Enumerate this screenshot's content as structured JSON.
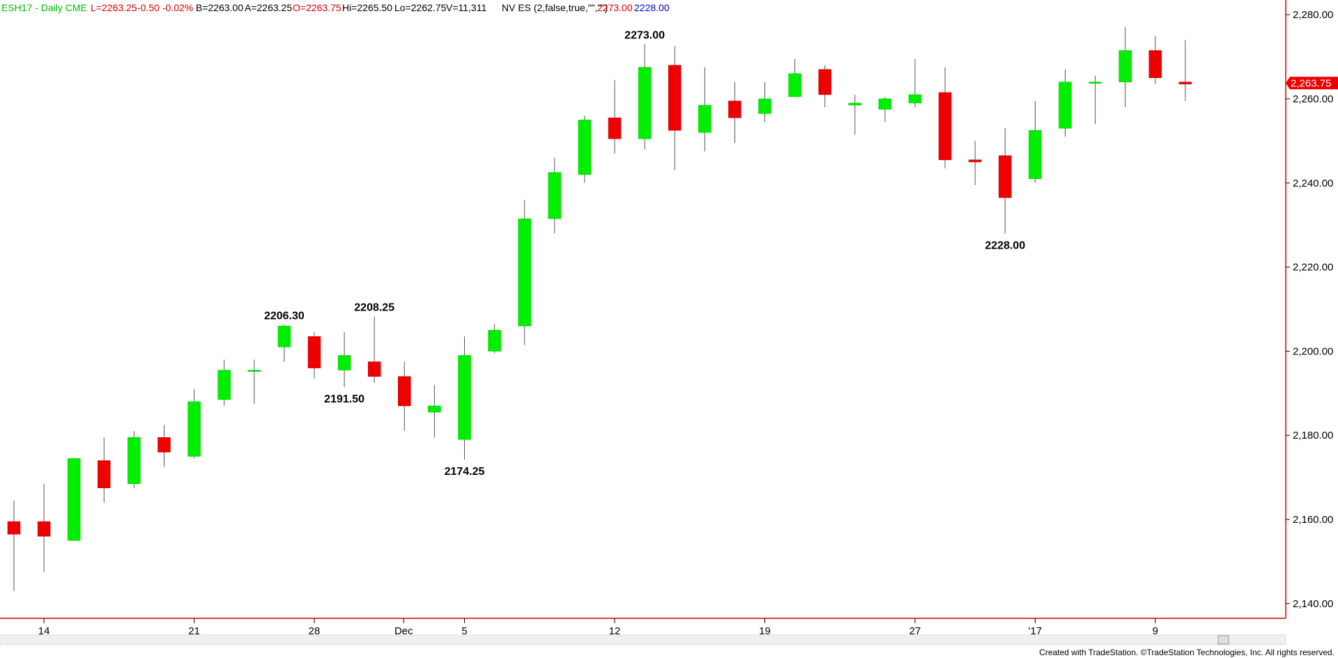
{
  "header": {
    "symbol": "ESH17 - Daily  CME",
    "last": "L=2263.25",
    "change": "-0.50",
    "change_pct": "-0.02%",
    "bid": "B=2263.00",
    "ask": "A=2263.25",
    "open": "O=2263.75",
    "high": "Hi=2265.50",
    "low": "Lo=2262.75",
    "volume": "V=11,311",
    "study": "NV ES (2,false,true,\"\",\"\")",
    "study_val1": "2273.00",
    "study_val2": "2228.00"
  },
  "colors": {
    "up": "#00ee00",
    "down": "#ee0000",
    "frame": "#cc0000",
    "wick": "#555555",
    "symbol_text": "#00bb00",
    "negative_text": "#dd0000",
    "study_val1": "#dd0000",
    "study_val2": "#0000cc"
  },
  "price_marker": "2,263.75",
  "footer": "Created with TradeStation. ©TradeStation Technologies, Inc. All rights reserved.",
  "chart_data": {
    "type": "candlestick",
    "y_axis_labels": [
      "2,280.00",
      "2,260.00",
      "2,240.00",
      "2,220.00",
      "2,200.00",
      "2,180.00",
      "2,160.00",
      "2,140.00"
    ],
    "y_axis_values": [
      2280,
      2260,
      2240,
      2220,
      2200,
      2180,
      2160,
      2140
    ],
    "ylim": [
      2136.5,
      2283.5
    ],
    "x_tick_labels": [
      {
        "label": "14",
        "bar": 1
      },
      {
        "label": "21",
        "bar": 6
      },
      {
        "label": "28",
        "bar": 10
      },
      {
        "label": "Dec",
        "bar": 13
      },
      {
        "label": "5",
        "bar": 15
      },
      {
        "label": "12",
        "bar": 20
      },
      {
        "label": "19",
        "bar": 25
      },
      {
        "label": "27",
        "bar": 30
      },
      {
        "label": "'17",
        "bar": 34
      },
      {
        "label": "9",
        "bar": 38
      }
    ],
    "candles": [
      {
        "o": 2159.5,
        "h": 2164.5,
        "l": 2143.0,
        "c": 2156.5
      },
      {
        "o": 2159.5,
        "h": 2168.5,
        "l": 2147.5,
        "c": 2156.0
      },
      {
        "o": 2155.0,
        "h": 2174.5,
        "l": 2155.0,
        "c": 2174.5
      },
      {
        "o": 2174.0,
        "h": 2179.5,
        "l": 2164.0,
        "c": 2167.5
      },
      {
        "o": 2168.5,
        "h": 2181.0,
        "l": 2167.5,
        "c": 2179.5
      },
      {
        "o": 2179.5,
        "h": 2182.5,
        "l": 2172.5,
        "c": 2176.0
      },
      {
        "o": 2175.0,
        "h": 2191.0,
        "l": 2174.5,
        "c": 2188.0
      },
      {
        "o": 2188.5,
        "h": 2198.0,
        "l": 2187.0,
        "c": 2195.5
      },
      {
        "o": 2195.5,
        "h": 2198.0,
        "l": 2187.5,
        "c": 2195.5
      },
      {
        "o": 2201.0,
        "h": 2206.3,
        "l": 2197.5,
        "c": 2206.0
      },
      {
        "o": 2203.5,
        "h": 2204.5,
        "l": 2193.5,
        "c": 2196.0
      },
      {
        "o": 2195.5,
        "h": 2204.5,
        "l": 2191.5,
        "c": 2199.0
      },
      {
        "o": 2197.5,
        "h": 2208.25,
        "l": 2192.5,
        "c": 2194.0
      },
      {
        "o": 2194.0,
        "h": 2197.5,
        "l": 2181.0,
        "c": 2187.0
      },
      {
        "o": 2185.5,
        "h": 2192.0,
        "l": 2179.5,
        "c": 2187.0
      },
      {
        "o": 2179.0,
        "h": 2203.5,
        "l": 2174.25,
        "c": 2199.0
      },
      {
        "o": 2200.0,
        "h": 2206.5,
        "l": 2199.5,
        "c": 2205.0
      },
      {
        "o": 2206.0,
        "h": 2236.0,
        "l": 2201.5,
        "c": 2231.5
      },
      {
        "o": 2231.5,
        "h": 2246.0,
        "l": 2228.0,
        "c": 2242.5
      },
      {
        "o": 2242.0,
        "h": 2256.0,
        "l": 2240.0,
        "c": 2255.0
      },
      {
        "o": 2255.5,
        "h": 2264.5,
        "l": 2247.0,
        "c": 2250.5
      },
      {
        "o": 2250.5,
        "h": 2273.0,
        "l": 2248.0,
        "c": 2267.5
      },
      {
        "o": 2268.0,
        "h": 2272.5,
        "l": 2243.0,
        "c": 2252.5
      },
      {
        "o": 2252.0,
        "h": 2267.5,
        "l": 2247.5,
        "c": 2258.5
      },
      {
        "o": 2259.5,
        "h": 2264.0,
        "l": 2249.5,
        "c": 2255.5
      },
      {
        "o": 2256.5,
        "h": 2264.0,
        "l": 2254.5,
        "c": 2260.0
      },
      {
        "o": 2260.5,
        "h": 2269.5,
        "l": 2260.5,
        "c": 2266.0
      },
      {
        "o": 2267.0,
        "h": 2268.0,
        "l": 2258.0,
        "c": 2261.0
      },
      {
        "o": 2258.5,
        "h": 2261.0,
        "l": 2251.5,
        "c": 2259.0
      },
      {
        "o": 2257.5,
        "h": 2260.5,
        "l": 2254.5,
        "c": 2260.0
      },
      {
        "o": 2259.0,
        "h": 2269.5,
        "l": 2258.0,
        "c": 2261.0
      },
      {
        "o": 2261.5,
        "h": 2267.5,
        "l": 2243.5,
        "c": 2245.5
      },
      {
        "o": 2245.5,
        "h": 2250.0,
        "l": 2239.5,
        "c": 2245.0
      },
      {
        "o": 2246.5,
        "h": 2253.0,
        "l": 2228.0,
        "c": 2236.5
      },
      {
        "o": 2241.0,
        "h": 2259.5,
        "l": 2240.0,
        "c": 2252.5
      },
      {
        "o": 2253.0,
        "h": 2267.0,
        "l": 2251.0,
        "c": 2264.0
      },
      {
        "o": 2264.0,
        "h": 2265.5,
        "l": 2254.0,
        "c": 2264.0
      },
      {
        "o": 2264.0,
        "h": 2277.0,
        "l": 2258.0,
        "c": 2271.5
      },
      {
        "o": 2271.5,
        "h": 2275.0,
        "l": 2263.5,
        "c": 2265.0
      },
      {
        "o": 2264.0,
        "h": 2274.0,
        "l": 2259.5,
        "c": 2263.5
      }
    ],
    "annotations": [
      {
        "text": "2206.30",
        "bar": 9,
        "pos": "above"
      },
      {
        "text": "2208.25",
        "bar": 12,
        "pos": "above"
      },
      {
        "text": "2191.50",
        "bar": 11,
        "pos": "below"
      },
      {
        "text": "2174.25",
        "bar": 15,
        "pos": "below"
      },
      {
        "text": "2273.00",
        "bar": 21,
        "pos": "above"
      },
      {
        "text": "2228.00",
        "bar": 33,
        "pos": "below"
      }
    ]
  }
}
